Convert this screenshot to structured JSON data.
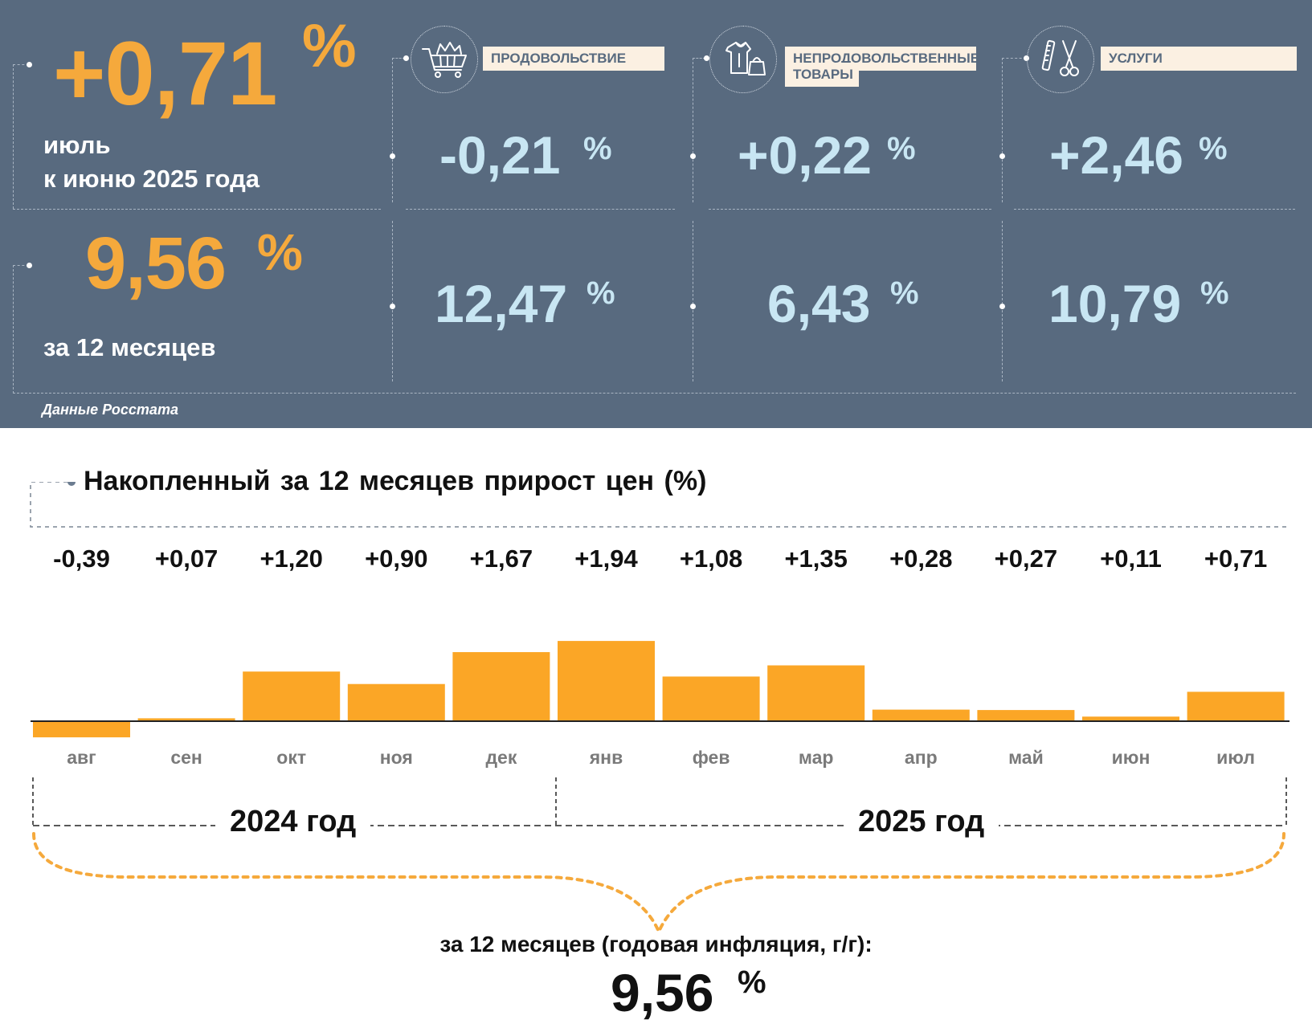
{
  "headline": {
    "monthly_value": "+0,71",
    "monthly_unit": "%",
    "monthly_caption_line1": "июль",
    "monthly_caption_line2": "к июню 2025 года",
    "annual_value": "9,56",
    "annual_unit": "%",
    "annual_caption": "за 12 месяцев"
  },
  "categories": [
    {
      "label": "ПРОДОВОЛЬСТВИЕ",
      "icon": "shopping-cart-icon",
      "monthly": "-0,21",
      "annual": "12,47",
      "unit": "%"
    },
    {
      "label": "НЕПРОДОВОЛЬСТВЕННЫЕ",
      "label_line2": "ТОВАРЫ",
      "icon": "clothing-bag-icon",
      "monthly": "+0,22",
      "annual": "6,43",
      "unit": "%"
    },
    {
      "label": "УСЛУГИ",
      "icon": "comb-scissors-icon",
      "monthly": "+2,46",
      "annual": "10,79",
      "unit": "%"
    }
  ],
  "source": "Данные Росстата",
  "colors": {
    "panel": "#586a7f",
    "accent": "#f5a93c",
    "light_value": "#c8e6f3",
    "bar": "#fba626"
  },
  "chart_data": {
    "type": "bar",
    "title": "Накопленный за 12 месяцев прирост цен (%)",
    "categories": [
      "авг",
      "сен",
      "окт",
      "ноя",
      "дек",
      "янв",
      "фев",
      "мар",
      "апр",
      "май",
      "июн",
      "июл"
    ],
    "values": [
      -0.39,
      0.07,
      1.2,
      0.9,
      1.67,
      1.94,
      1.08,
      1.35,
      0.28,
      0.27,
      0.11,
      0.71
    ],
    "value_labels": [
      "-0,39",
      "+0,07",
      "+1,20",
      "+0,90",
      "+1,67",
      "+1,94",
      "+1,08",
      "+1,35",
      "+0,28",
      "+0,27",
      "+0,11",
      "+0,71"
    ],
    "years": [
      "2024 год",
      "2025 год"
    ],
    "annual_caption": "за 12 месяцев (годовая инфляция, г/г):",
    "annual_value": "9,56",
    "annual_unit": "%"
  }
}
